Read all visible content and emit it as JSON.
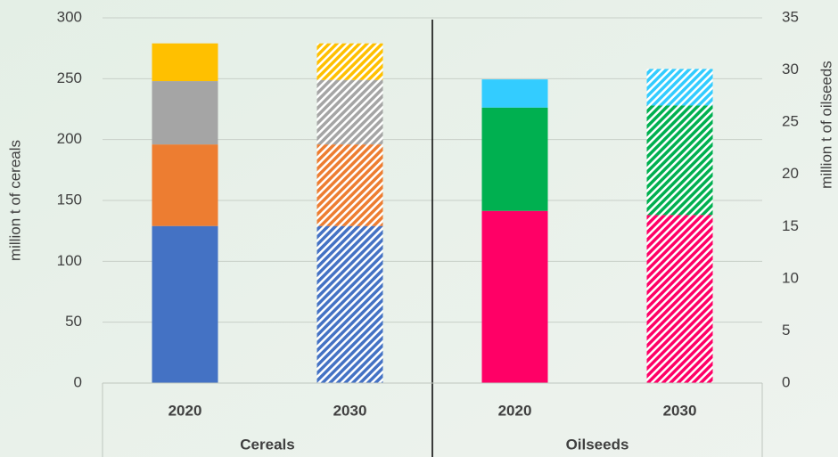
{
  "chart_data": {
    "type": "bar",
    "stacked": true,
    "ylabel": "million t of cereals",
    "y2label": "million t of oilseeds",
    "ylim": [
      0,
      300
    ],
    "yticks": [
      0,
      50,
      100,
      150,
      200,
      250,
      300
    ],
    "y2lim": [
      0,
      35
    ],
    "y2ticks": [
      0,
      5,
      10,
      15,
      20,
      25,
      30,
      35
    ],
    "grid": true,
    "groups": [
      {
        "name": "Cereals",
        "axis": "y",
        "categories": [
          "2020",
          "2030"
        ],
        "hatched": [
          false,
          true
        ],
        "series": [
          {
            "color": "#4472c4",
            "values": [
              129,
              129
            ]
          },
          {
            "color": "#ed7d31",
            "values": [
              67,
              67
            ]
          },
          {
            "color": "#a5a5a5",
            "values": [
              52,
              53
            ]
          },
          {
            "color": "#ffc000",
            "values": [
              31,
              30
            ]
          }
        ]
      },
      {
        "name": "Oilseeds",
        "axis": "y2",
        "categories": [
          "2020",
          "2030"
        ],
        "hatched": [
          false,
          true
        ],
        "series": [
          {
            "color": "#ff0066",
            "values": [
              16.5,
              16.1
            ]
          },
          {
            "color": "#00b050",
            "values": [
              9.9,
              10.5
            ]
          },
          {
            "color": "#33ccff",
            "values": [
              2.7,
              3.5
            ]
          }
        ]
      }
    ]
  }
}
